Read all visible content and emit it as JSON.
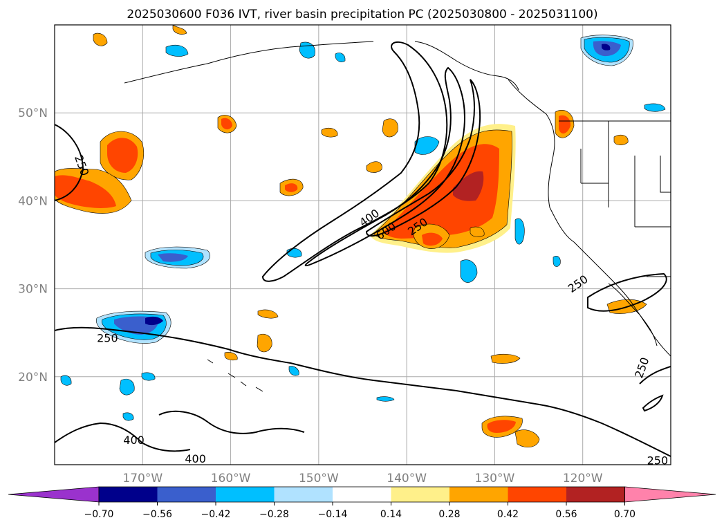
{
  "title": "2025030600 F036 IVT, river basin precipitation PC (2025030800 - 2025031100)",
  "map": {
    "lon_range": [
      -180,
      -110
    ],
    "lat_range": [
      10,
      60
    ],
    "lat_labels": [
      {
        "lat": 50,
        "label": "50°N"
      },
      {
        "lat": 40,
        "label": "40°N"
      },
      {
        "lat": 30,
        "label": "30°N"
      },
      {
        "lat": 20,
        "label": "20°N"
      }
    ],
    "lon_labels": [
      {
        "lon": -170,
        "label": "170°W"
      },
      {
        "lon": -160,
        "label": "160°W"
      },
      {
        "lon": -150,
        "label": "150°W"
      },
      {
        "lon": -140,
        "label": "140°W"
      },
      {
        "lon": -130,
        "label": "130°W"
      },
      {
        "lon": -120,
        "label": "120°W"
      }
    ],
    "ivt_contour_labels": [
      {
        "text": "250",
        "lon": -177,
        "lat": 44,
        "rot": 70
      },
      {
        "text": "400",
        "lon": -144.2,
        "lat": 38,
        "rot": -35
      },
      {
        "text": "600",
        "lon": -142.3,
        "lat": 36.5,
        "rot": -35
      },
      {
        "text": "250",
        "lon": -138.7,
        "lat": 37,
        "rot": -35
      },
      {
        "text": "250",
        "lon": -174,
        "lat": 24.3,
        "rot": 0
      },
      {
        "text": "400",
        "lon": -171,
        "lat": 12.7,
        "rot": 0
      },
      {
        "text": "400",
        "lon": -164,
        "lat": 10.6,
        "rot": 0
      },
      {
        "text": "250",
        "lon": -120.5,
        "lat": 30.5,
        "rot": -35
      },
      {
        "text": "250",
        "lon": -113.2,
        "lat": 21,
        "rot": -70
      },
      {
        "text": "250",
        "lon": -111.5,
        "lat": 10.4,
        "rot": 0
      }
    ]
  },
  "colorbar": {
    "colors": [
      "#9a32cd",
      "#00008b",
      "#3a5fcd",
      "#00bfff",
      "#b0e2ff",
      "#ffffff",
      "#fff08a",
      "#ffa500",
      "#ff4500",
      "#b22222",
      "#ff82ab"
    ],
    "tick_labels": [
      "−0.70",
      "−0.56",
      "−0.42",
      "−0.28",
      "−0.14",
      "0.14",
      "0.28",
      "0.42",
      "0.56",
      "0.70"
    ]
  }
}
